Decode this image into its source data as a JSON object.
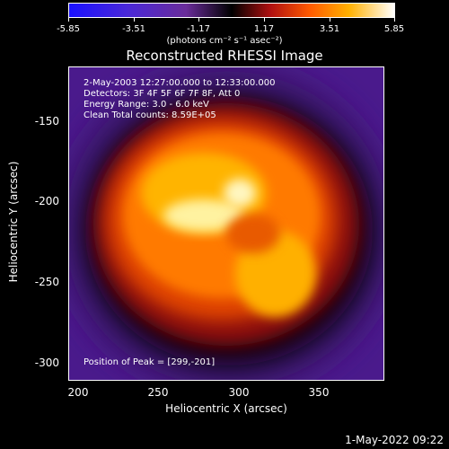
{
  "colorbar": {
    "ticks": [
      "-5.85",
      "-3.51",
      "-1.17",
      "1.17",
      "3.51",
      "5.85"
    ],
    "units": "(photons cm⁻² s⁻¹ asec⁻²)"
  },
  "plot": {
    "title": "Reconstructed RHESSI Image",
    "info_lines": [
      " 2-May-2003 12:27:00.000 to 12:33:00.000",
      "Detectors: 3F 4F 5F 6F 7F 8F, Att 0",
      "Energy Range: 3.0 - 6.0 keV",
      "Clean     Total counts: 8.59E+05"
    ],
    "peak_text": "Position of Peak = [299,-201]",
    "yticks": [
      "-150",
      "-200",
      "-250",
      "-300"
    ],
    "xticks": [
      "200",
      "250",
      "300",
      "350"
    ],
    "xlabel": "Heliocentric X (arcsec)",
    "ylabel": "Heliocentric Y (arcsec)"
  },
  "footer": {
    "timestamp": "1-May-2022 09:22"
  }
}
